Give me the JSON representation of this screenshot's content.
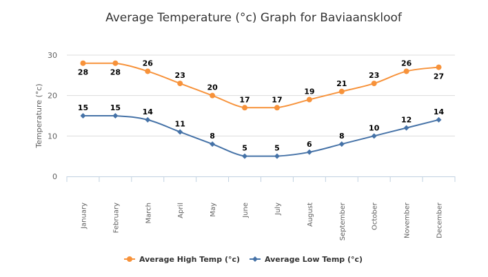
{
  "chart_data": {
    "type": "line",
    "title": "Average Temperature (°c) Graph for Baviaanskloof",
    "xlabel": "",
    "ylabel": "Temperature (°c)",
    "ylim": [
      0,
      30
    ],
    "yticks": [
      0,
      10,
      20,
      30
    ],
    "grid": true,
    "legend_position": "bottom",
    "categories": [
      "January",
      "February",
      "March",
      "April",
      "May",
      "June",
      "July",
      "August",
      "September",
      "October",
      "November",
      "December"
    ],
    "series": [
      {
        "name": "Average High Temp (°c)",
        "color": "#f7923a",
        "marker": "circle",
        "values": [
          28,
          28,
          26,
          23,
          20,
          17,
          17,
          19,
          21,
          23,
          26,
          27
        ]
      },
      {
        "name": "Average Low Temp (°c)",
        "color": "#4572a7",
        "marker": "diamond",
        "values": [
          15,
          15,
          14,
          11,
          8,
          5,
          5,
          6,
          8,
          10,
          12,
          14
        ]
      }
    ]
  }
}
